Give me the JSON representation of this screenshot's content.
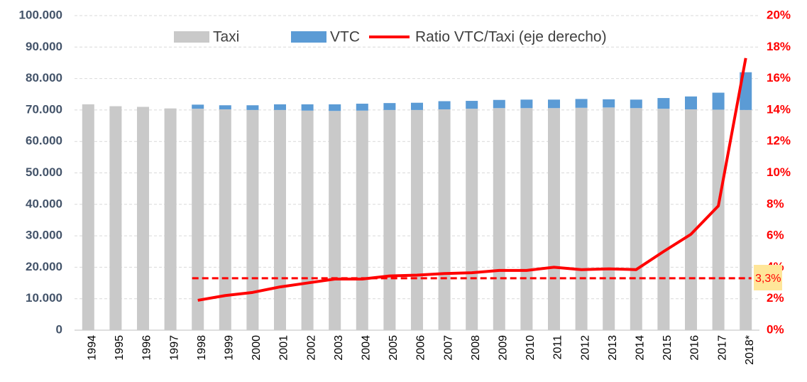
{
  "chart_data": {
    "type": "bar",
    "categories": [
      "1994",
      "1995",
      "1996",
      "1997",
      "1998",
      "1999",
      "2000",
      "2001",
      "2002",
      "2003",
      "2004",
      "2005",
      "2006",
      "2007",
      "2008",
      "2009",
      "2010",
      "2011",
      "2012",
      "2013",
      "2014",
      "2015",
      "2016",
      "2017",
      "2018*"
    ],
    "series": [
      {
        "name": "Taxi",
        "color": "#c9c9c9",
        "values": [
          71800,
          71200,
          71000,
          70500,
          70400,
          70200,
          70000,
          70000,
          69800,
          69700,
          69800,
          70000,
          70000,
          70200,
          70400,
          70600,
          70600,
          70600,
          70700,
          70800,
          70600,
          70400,
          70200,
          70100,
          70000
        ]
      },
      {
        "name": "VTC",
        "color": "#5b9bd5",
        "values": [
          0,
          0,
          0,
          0,
          1300,
          1300,
          1500,
          1800,
          2000,
          2100,
          2200,
          2200,
          2300,
          2600,
          2500,
          2600,
          2700,
          2700,
          2800,
          2600,
          2700,
          3400,
          4100,
          5400,
          12000
        ]
      },
      {
        "name": "Ratio VTC/Taxi (eje derecho)",
        "color": "#ff0000",
        "type": "line",
        "axis": "y2",
        "values": [
          null,
          null,
          null,
          null,
          1.9,
          2.2,
          2.4,
          2.75,
          3.0,
          3.25,
          3.25,
          3.45,
          3.5,
          3.6,
          3.65,
          3.8,
          3.8,
          4.0,
          3.85,
          3.9,
          3.85,
          5.0,
          6.1,
          7.9,
          17.3
        ]
      }
    ],
    "ylim": [
      0,
      100000
    ],
    "yticks": [
      0,
      {
        "value": 10000,
        "label": "10.000"
      },
      {
        "value": 20000,
        "label": "20.000"
      },
      {
        "value": 30000,
        "label": "30.000"
      },
      {
        "value": 40000,
        "label": "40.000"
      },
      {
        "value": 50000,
        "label": "50.000"
      },
      {
        "value": 60000,
        "label": "60.000"
      },
      {
        "value": 70000,
        "label": "70.000"
      },
      {
        "value": 80000,
        "label": "80.000"
      },
      {
        "value": 90000,
        "label": "90.000"
      },
      {
        "value": 100000,
        "label": "100.000"
      }
    ],
    "y2lim": [
      0,
      20
    ],
    "y2ticks": [
      {
        "value": 0,
        "label": "0%"
      },
      {
        "value": 2,
        "label": "2%"
      },
      {
        "value": 4,
        "label": "4%"
      },
      {
        "value": 6,
        "label": "6%"
      },
      {
        "value": 8,
        "label": "8%"
      },
      {
        "value": 10,
        "label": "10%"
      },
      {
        "value": 12,
        "label": "12%"
      },
      {
        "value": 14,
        "label": "14%"
      },
      {
        "value": 16,
        "label": "16%"
      },
      {
        "value": 18,
        "label": "18%"
      },
      {
        "value": 20,
        "label": "20%"
      }
    ],
    "grid": true,
    "annotations": [
      {
        "value": 3.3,
        "label": "3,3%",
        "color": "#ff0000",
        "background": "#ffe699"
      }
    ]
  }
}
